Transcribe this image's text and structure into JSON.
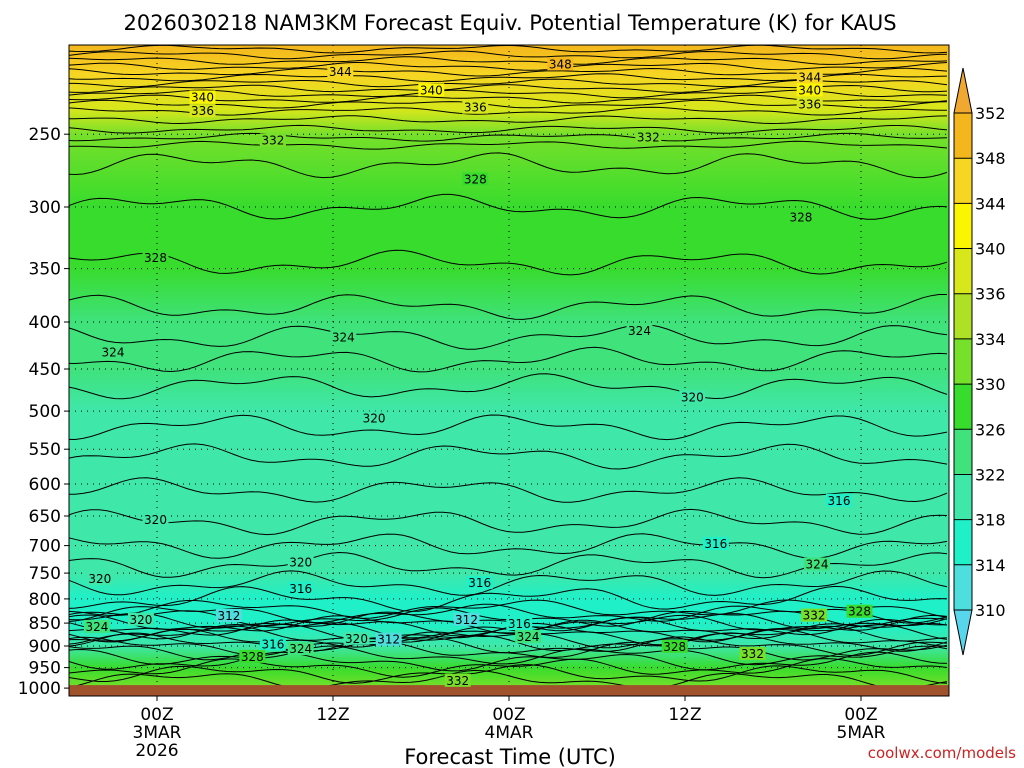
{
  "chart_data": {
    "type": "heatmap",
    "title": "2026030218 NAM3KM Forecast Equiv. Potential Temperature (K) for KAUS",
    "xlabel": "Forecast Time (UTC)",
    "ylabel": "",
    "y_scale": "log",
    "y_reversed": true,
    "y_ticks": [
      250,
      300,
      350,
      400,
      450,
      500,
      550,
      600,
      650,
      700,
      750,
      800,
      850,
      900,
      950,
      1000
    ],
    "x_ticks": [
      {
        "label": "00Z",
        "sub1": "3MAR",
        "sub2": "2026",
        "hours_after_start": 6
      },
      {
        "label": "12Z",
        "sub1": "",
        "sub2": "",
        "hours_after_start": 18
      },
      {
        "label": "00Z",
        "sub1": "4MAR",
        "sub2": "",
        "hours_after_start": 30
      },
      {
        "label": "12Z",
        "sub1": "",
        "sub2": "",
        "hours_after_start": 42
      },
      {
        "label": "00Z",
        "sub1": "5MAR",
        "sub2": "",
        "hours_after_start": 54
      }
    ],
    "x_range_hours": [
      0,
      60
    ],
    "y_range_hpa": [
      200,
      1020
    ],
    "grid": "dotted",
    "colorbar": {
      "levels": [
        310,
        314,
        318,
        322,
        326,
        330,
        334,
        336,
        340,
        344,
        348,
        352
      ],
      "bands": [
        "#4fdede",
        "#1ff0c8",
        "#3fe7a9",
        "#3fe27b",
        "#38dc2d",
        "#77e02a",
        "#aee126",
        "#d7e71b",
        "#fbf600",
        "#f7d523",
        "#f3b61c"
      ],
      "under_color": "#58d6ec",
      "over_color": "#f0a830"
    },
    "levels": [
      {
        "p": 200,
        "theta": 351
      },
      {
        "p": 215,
        "theta": 346
      },
      {
        "p": 235,
        "theta": 338
      },
      {
        "p": 250,
        "theta": 333
      },
      {
        "p": 300,
        "theta": 329
      },
      {
        "p": 350,
        "theta": 327
      },
      {
        "p": 400,
        "theta": 325
      },
      {
        "p": 450,
        "theta": 323
      },
      {
        "p": 500,
        "theta": 321
      },
      {
        "p": 550,
        "theta": 320
      },
      {
        "p": 600,
        "theta": 319
      },
      {
        "p": 650,
        "theta": 319
      },
      {
        "p": 700,
        "theta": 319
      },
      {
        "p": 750,
        "theta": 318
      },
      {
        "p": 800,
        "theta": 317
      },
      {
        "p": 850,
        "theta": 315
      },
      {
        "p": 900,
        "theta": 318
      },
      {
        "p": 950,
        "theta": 329
      },
      {
        "p": 1000,
        "theta": 333
      }
    ],
    "contour_labels": [
      {
        "text": "348",
        "h": 33.5,
        "p": 210
      },
      {
        "text": "344",
        "h": 18.5,
        "p": 214
      },
      {
        "text": "344",
        "h": 50.5,
        "p": 217
      },
      {
        "text": "340",
        "h": 9.1,
        "p": 228
      },
      {
        "text": "340",
        "h": 24.7,
        "p": 224
      },
      {
        "text": "340",
        "h": 50.5,
        "p": 224
      },
      {
        "text": "336",
        "h": 9.1,
        "p": 236
      },
      {
        "text": "336",
        "h": 27.7,
        "p": 234
      },
      {
        "text": "336",
        "h": 50.5,
        "p": 232
      },
      {
        "text": "332",
        "h": 13.9,
        "p": 254
      },
      {
        "text": "332",
        "h": 39.5,
        "p": 252
      },
      {
        "text": "328",
        "h": 27.7,
        "p": 280
      },
      {
        "text": "328",
        "h": 49.9,
        "p": 308
      },
      {
        "text": "328",
        "h": 5.9,
        "p": 341
      },
      {
        "text": "324",
        "h": 18.7,
        "p": 416
      },
      {
        "text": "324",
        "h": 38.9,
        "p": 409
      },
      {
        "text": "324",
        "h": 3.0,
        "p": 432
      },
      {
        "text": "320",
        "h": 42.5,
        "p": 483
      },
      {
        "text": "320",
        "h": 20.8,
        "p": 509
      },
      {
        "text": "316",
        "h": 52.5,
        "p": 626
      },
      {
        "text": "320",
        "h": 5.9,
        "p": 657
      },
      {
        "text": "316",
        "h": 44.1,
        "p": 697
      },
      {
        "text": "320",
        "h": 15.8,
        "p": 730
      },
      {
        "text": "324",
        "h": 51.0,
        "p": 734
      },
      {
        "text": "320",
        "h": 2.1,
        "p": 761
      },
      {
        "text": "316",
        "h": 15.8,
        "p": 780
      },
      {
        "text": "316",
        "h": 28.0,
        "p": 769
      },
      {
        "text": "312",
        "h": 10.9,
        "p": 835
      },
      {
        "text": "320",
        "h": 4.9,
        "p": 843
      },
      {
        "text": "324",
        "h": 1.9,
        "p": 858
      },
      {
        "text": "312",
        "h": 27.1,
        "p": 843
      },
      {
        "text": "316",
        "h": 30.7,
        "p": 852
      },
      {
        "text": "332",
        "h": 50.8,
        "p": 834
      },
      {
        "text": "328",
        "h": 53.9,
        "p": 826
      },
      {
        "text": "320",
        "h": 19.6,
        "p": 884
      },
      {
        "text": "312",
        "h": 21.8,
        "p": 886
      },
      {
        "text": "316",
        "h": 13.9,
        "p": 897
      },
      {
        "text": "324",
        "h": 15.8,
        "p": 907
      },
      {
        "text": "324",
        "h": 31.3,
        "p": 880
      },
      {
        "text": "328",
        "h": 12.5,
        "p": 925
      },
      {
        "text": "328",
        "h": 41.3,
        "p": 902
      },
      {
        "text": "332",
        "h": 46.6,
        "p": 918
      },
      {
        "text": "332",
        "h": 26.5,
        "p": 982
      }
    ],
    "watermark": "coolwx.com/models"
  }
}
